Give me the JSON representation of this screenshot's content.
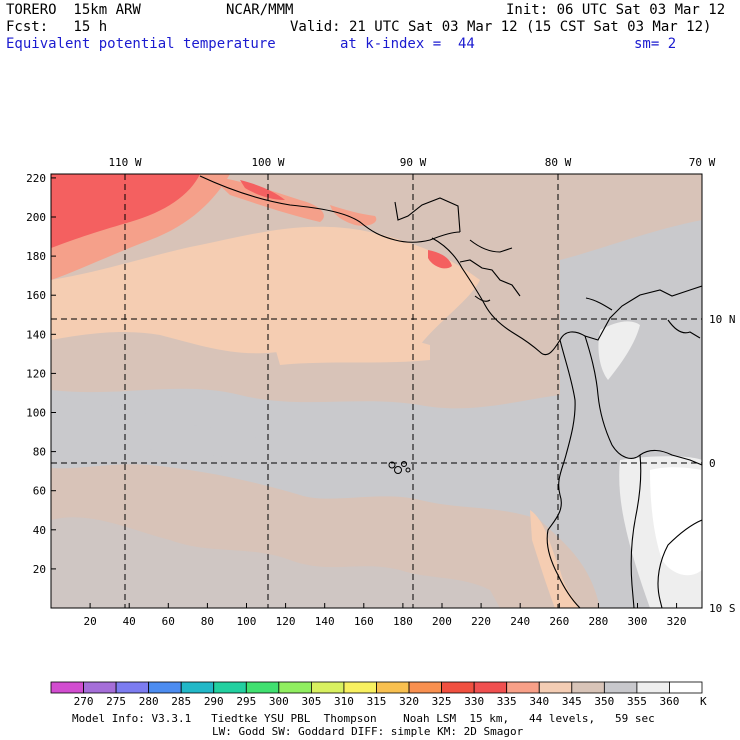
{
  "header": {
    "model": "TORERO  15km ARW",
    "center": "NCAR/MMM",
    "init": "Init: 06 UTC Sat 03 Mar 12",
    "fcst": "Fcst:   15 h",
    "valid": "Valid: 21 UTC Sat 03 Mar 12 (15 CST Sat 03 Mar 12)",
    "field": "Equivalent potential temperature",
    "level": "at k-index =  44",
    "smooth": "sm= 2"
  },
  "map": {
    "lon_labels": [
      "110 W",
      "100 W",
      "90 W",
      "80 W",
      "70 W"
    ],
    "lat_labels": [
      "10 N",
      "0",
      "10 S"
    ],
    "x_ticks": [
      "20",
      "40",
      "60",
      "80",
      "100",
      "120",
      "140",
      "160",
      "180",
      "200",
      "220",
      "240",
      "260",
      "280",
      "300",
      "320"
    ],
    "y_ticks": [
      "220",
      "200",
      "180",
      "160",
      "140",
      "120",
      "100",
      "80",
      "60",
      "40",
      "20"
    ],
    "colors": {
      "c340": "#f5cdb2",
      "c345": "#d8c3b8",
      "c350": "#c9c9cc",
      "c355": "#eeeeee",
      "c360": "#ffffff",
      "c335": "#f5a08a",
      "c330": "#f46060",
      "c325": "#ee4d4d"
    }
  },
  "colorbar": {
    "labels": [
      "270",
      "275",
      "280",
      "285",
      "290",
      "295",
      "300",
      "305",
      "310",
      "315",
      "320",
      "325",
      "330",
      "335",
      "340",
      "345",
      "350",
      "355",
      "360"
    ],
    "unit": "K",
    "swatches": [
      "#d24dd0",
      "#a56ed8",
      "#7c7cf0",
      "#4c8cf0",
      "#22b8c8",
      "#22d0a0",
      "#40e070",
      "#90ee60",
      "#d8f060",
      "#f8f060",
      "#f8c050",
      "#f89050",
      "#f05040",
      "#f05050",
      "#f8a088",
      "#f4cdb4",
      "#d8c4b8",
      "#c8c8cc",
      "#eeeeee"
    ]
  },
  "footer": {
    "line1": "Model Info: V3.3.1   Tiedtke YSU PBL  Thompson    Noah LSM  15 km,   44 levels,   59 sec",
    "line2": "LW: Godd SW: Goddard DIFF: simple KM: 2D Smagor"
  }
}
